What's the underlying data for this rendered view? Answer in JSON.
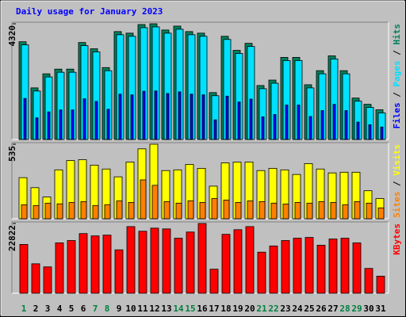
{
  "chart_data": [
    {
      "type": "bar",
      "title": "Daily usage for January 2023",
      "legend_separator": " / ",
      "ylim": [
        0,
        4320
      ],
      "yticks": [
        4320
      ],
      "series": [
        {
          "name": "Hits",
          "color": "#00805c",
          "values": [
            3649,
            1927,
            2452,
            2627,
            2627,
            3620,
            3386,
            2685,
            4028,
            3970,
            4291,
            4320,
            4087,
            4233,
            4028,
            3970,
            1751,
            3853,
            3328,
            3590,
            2014,
            2218,
            3065,
            3065,
            2043,
            2569,
            3123,
            2569,
            1547,
            1314,
            1109
          ]
        },
        {
          "name": "Pages",
          "color": "#00e0ff",
          "values": [
            3532,
            1810,
            2335,
            2510,
            2510,
            3503,
            3269,
            2568,
            3911,
            3853,
            4174,
            4203,
            3970,
            4116,
            3911,
            3853,
            1634,
            3736,
            3211,
            3473,
            1897,
            2101,
            2948,
            2948,
            1926,
            2452,
            3006,
            2452,
            1430,
            1197,
            992
          ]
        },
        {
          "name": "Files",
          "color": "#0000ff",
          "values": [
            1533,
            809,
            1030,
            1103,
            1103,
            1520,
            1422,
            1128,
            1692,
            1667,
            1802,
            1814,
            1717,
            1778,
            1692,
            1667,
            735,
            1618,
            1398,
            1508,
            846,
            932,
            1287,
            1287,
            858,
            1079,
            1312,
            1079,
            650,
            552,
            466
          ]
        }
      ]
    },
    {
      "type": "bar",
      "legend_separator": " / ",
      "ylim": [
        0,
        535
      ],
      "yticks": [
        535
      ],
      "series": [
        {
          "name": "Visits",
          "color": "#ffff00",
          "values": [
            295,
            223,
            156,
            351,
            418,
            424,
            385,
            357,
            301,
            407,
            502,
            535,
            346,
            351,
            390,
            362,
            234,
            401,
            407,
            407,
            346,
            362,
            351,
            318,
            396,
            357,
            329,
            334,
            334,
            201,
            145
          ]
        },
        {
          "name": "Sites",
          "color": "#ff8000",
          "values": [
            100,
            95,
            112,
            107,
            117,
            123,
            95,
            101,
            128,
            117,
            279,
            240,
            123,
            112,
            129,
            117,
            145,
            134,
            117,
            128,
            123,
            112,
            106,
            117,
            112,
            123,
            117,
            101,
            123,
            112,
            78
          ]
        }
      ]
    },
    {
      "type": "bar",
      "ylim": [
        0,
        22822
      ],
      "yticks": [
        22822
      ],
      "categories": [
        "1",
        "2",
        "3",
        "4",
        "5",
        "6",
        "7",
        "8",
        "9",
        "10",
        "11",
        "12",
        "13",
        "14",
        "15",
        "16",
        "17",
        "18",
        "19",
        "20",
        "21",
        "22",
        "23",
        "24",
        "25",
        "26",
        "27",
        "28",
        "29",
        "30",
        "31"
      ],
      "category_colors": [
        "#008040",
        "#000000",
        "#000000",
        "#000000",
        "#000000",
        "#000000",
        "#008040",
        "#008040",
        "#000000",
        "#000000",
        "#000000",
        "#000000",
        "#000000",
        "#008040",
        "#008040",
        "#000000",
        "#000000",
        "#000000",
        "#000000",
        "#000000",
        "#008040",
        "#008040",
        "#000000",
        "#000000",
        "#000000",
        "#000000",
        "#000000",
        "#008040",
        "#008040",
        "#000000",
        "#000000"
      ],
      "series": [
        {
          "name": "KBytes",
          "color": "#ff0000",
          "values": [
            15975,
            9636,
            8622,
            16482,
            17243,
            19525,
            18764,
            19018,
            14200,
            21806,
            20286,
            21300,
            21047,
            18004,
            20032,
            22822,
            7861,
            19272,
            20793,
            21806,
            13439,
            15468,
            17243,
            18004,
            18258,
            15722,
            17750,
            18004,
            16482,
            8115,
            5579
          ]
        }
      ]
    }
  ]
}
